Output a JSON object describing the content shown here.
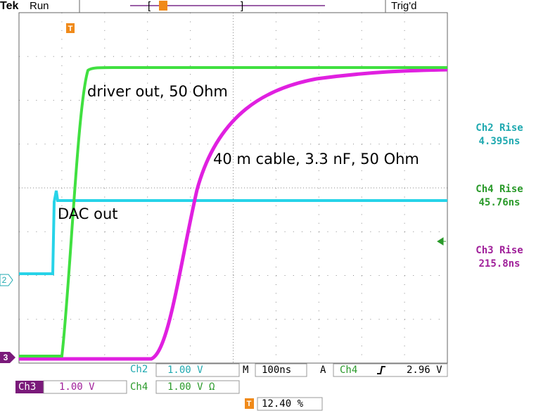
{
  "header": {
    "brand": "Tek",
    "status": "Run",
    "trigger_state": "Trig'd"
  },
  "annotations": [
    "driver out, 50 Ohm",
    "40 m cable, 3.3 nF, 50 Ohm",
    "DAC out"
  ],
  "measurements": [
    {
      "label": "Ch2 Rise",
      "value": "4.395ns",
      "color": "#1fa9b0"
    },
    {
      "label": "Ch4 Rise",
      "value": "45.76ns",
      "color": "#2a9a2a"
    },
    {
      "label": "Ch3 Rise",
      "value": "215.8ns",
      "color": "#a0209a"
    }
  ],
  "markers": {
    "ch2": "2",
    "ch3": "3"
  },
  "status_bar": {
    "ch2": {
      "name": "Ch2",
      "scale": "1.00 V"
    },
    "timebase": {
      "label": "M",
      "value": "100ns"
    },
    "trigger": {
      "label": "A",
      "source": "Ch4",
      "level": "2.96 V"
    },
    "ch3": {
      "name": "Ch3",
      "scale": "1.00 V"
    },
    "ch4": {
      "name": "Ch4",
      "scale": "1.00 V Ω"
    },
    "trigger_position": "12.40 %"
  }
}
